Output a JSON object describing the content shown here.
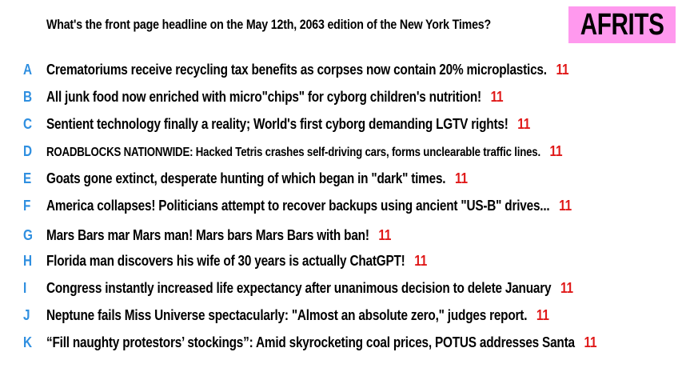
{
  "question": "What's the front page headline on the May 12th, 2063 edition of the New York Times?",
  "badge": {
    "label": "AFRITS",
    "color": "#ff99ee"
  },
  "colors": {
    "letter": "#2f8fe0",
    "score": "#e01818"
  },
  "answers": [
    {
      "letter": "A",
      "text": "Crematoriums receive recycling tax benefits as corpses now contain 20% microplastics.",
      "score": "11"
    },
    {
      "letter": "B",
      "text": "All junk food now enriched with micro\"chips\" for cyborg children's nutrition!",
      "score": "11"
    },
    {
      "letter": "C",
      "text": "Sentient technology finally a reality; World's first cyborg demanding LGTV rights!",
      "score": "11"
    },
    {
      "letter": "D",
      "text": "ROADBLOCKS NATIONWIDE: Hacked Tetris crashes self-driving cars, forms unclearable traffic lines.",
      "score": "11"
    },
    {
      "letter": "E",
      "text": "Goats gone extinct, desperate hunting of which began in \"dark\" times.",
      "score": "11"
    },
    {
      "letter": "F",
      "text": "America collapses! Politicians attempt to recover backups using ancient \"US-B\" drives...",
      "score": "11"
    },
    {
      "letter": "G",
      "text": "Mars Bars mar Mars man! Mars bars Mars Bars with ban!",
      "score": "11"
    },
    {
      "letter": "H",
      "text": "Florida man discovers his wife of 30 years is actually ChatGPT!",
      "score": "11"
    },
    {
      "letter": "I",
      "text": "Congress instantly increased life expectancy after unanimous decision to delete January",
      "score": "11"
    },
    {
      "letter": "J",
      "text": "Neptune fails Miss Universe spectacularly: \"Almost an absolute zero,\" judges report.",
      "score": "11"
    },
    {
      "letter": "K",
      "text": "“Fill naughty protestors’ stockings”: Amid skyrocketing coal prices, POTUS addresses Santa",
      "score": "11"
    }
  ]
}
